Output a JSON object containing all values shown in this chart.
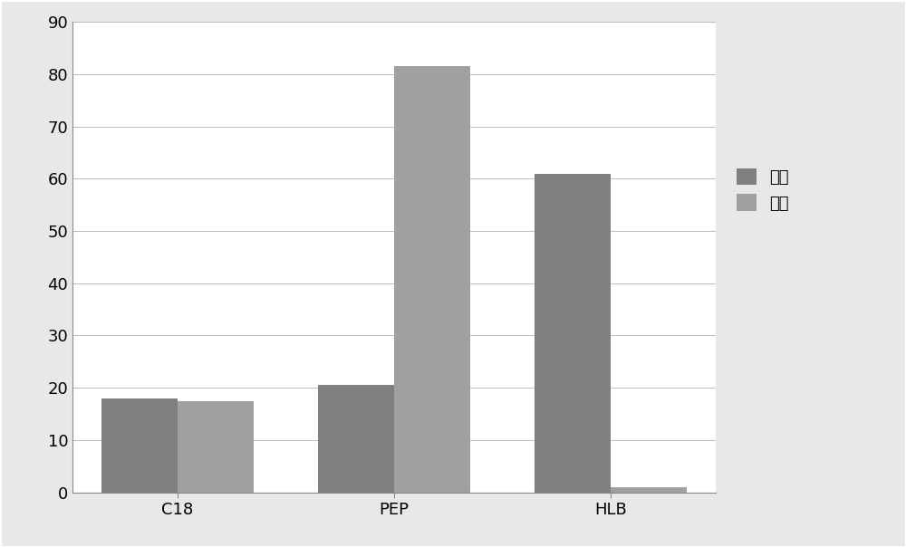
{
  "categories": [
    "C18",
    "PEP",
    "HLB"
  ],
  "series1_label": "毒物",
  "series2_label": "药物",
  "series1_values": [
    18,
    20.5,
    61
  ],
  "series2_values": [
    17.5,
    81.5,
    1
  ],
  "bar_color1": "#7f7f7f",
  "bar_color2": "#a0a0a0",
  "ylim": [
    0,
    90
  ],
  "yticks": [
    0,
    10,
    20,
    30,
    40,
    50,
    60,
    70,
    80,
    90
  ],
  "background_color": "#e8e8e8",
  "plot_bg_color": "#ffffff",
  "grid_color": "#bbbbbb",
  "border_color": "#888888",
  "bar_width": 0.35,
  "tick_fontsize": 13,
  "legend_fontsize": 13
}
